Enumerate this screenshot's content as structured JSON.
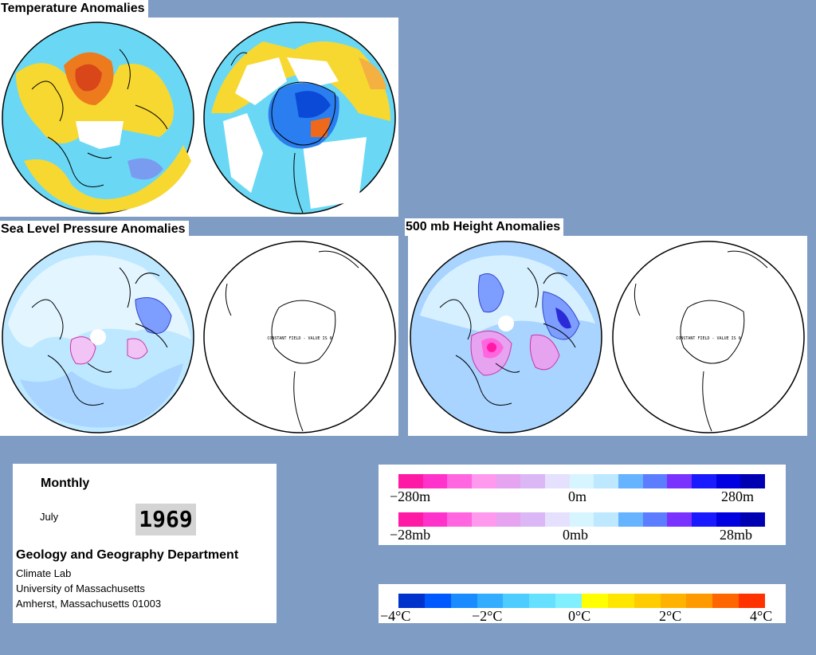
{
  "titles": {
    "temperature": "Temperature Anomalies",
    "slp": "Sea Level Pressure Anomalies",
    "height500": "500 mb Height Anomalies"
  },
  "map_text": {
    "constant_field_slp": "CONSTANT FIELD - VALUE IS 0",
    "constant_field_500": "CONSTANT FIELD - VALUE IS 0"
  },
  "info": {
    "period": "Monthly",
    "month": "July",
    "year": "1969",
    "department": "Geology and Geography Department",
    "lab": "Climate Lab",
    "university": "University of Massachusetts",
    "address": "Amherst, Massachusetts 01003"
  },
  "legends": {
    "height": {
      "min": "−280m",
      "mid": "0m",
      "max": "280m"
    },
    "pressure": {
      "min": "−28mb",
      "mid": "0mb",
      "max": "28mb"
    },
    "temperature": {
      "t1": "−4°C",
      "t2": "−2°C",
      "t3": "0°C",
      "t4": "2°C",
      "t5": "4°C"
    }
  },
  "colors": {
    "background": "#7f9cc4",
    "anomaly_scale": [
      "#ff1aa6",
      "#ff33cc",
      "#ff66e0",
      "#ff99ee",
      "#e6a3f0",
      "#dbb8f5",
      "#e6e0ff",
      "#d6f5ff",
      "#bde8ff",
      "#66b3ff",
      "#5c7dff",
      "#7a33ff",
      "#1a1aff",
      "#0000e0",
      "#0000b3"
    ],
    "temperature_scale": [
      "#0033cc",
      "#0059ff",
      "#1a8cff",
      "#33adff",
      "#4dccff",
      "#66e0ff",
      "#80f0ff",
      "#ffff00",
      "#ffe600",
      "#ffcc00",
      "#ffb300",
      "#ff9900",
      "#ff6600",
      "#ff3300"
    ]
  }
}
